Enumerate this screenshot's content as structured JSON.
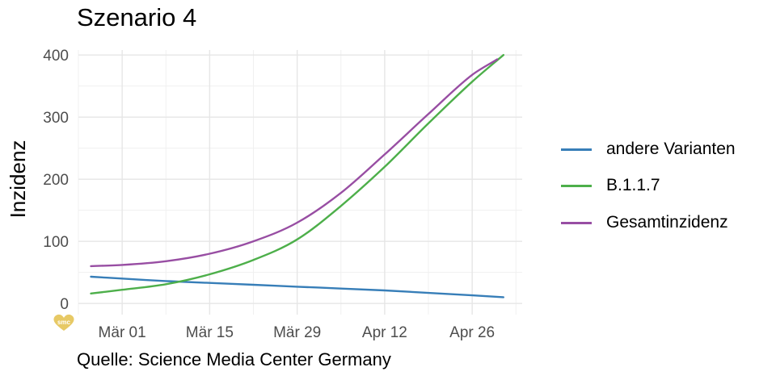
{
  "chart_data": {
    "type": "line",
    "title": "Szenario 4",
    "caption": "Quelle: Science Media Center Germany",
    "xlabel": "",
    "ylabel": "Inzidenz",
    "x_start": "2021-02-24",
    "x_ticks": [
      {
        "date": "2021-03-01",
        "label": "Mär 01"
      },
      {
        "date": "2021-03-15",
        "label": "Mär 15"
      },
      {
        "date": "2021-03-29",
        "label": "Mär 29"
      },
      {
        "date": "2021-04-12",
        "label": "Apr 12"
      },
      {
        "date": "2021-04-26",
        "label": "Apr 26"
      }
    ],
    "xlim": [
      "2021-02-22",
      "2021-05-04"
    ],
    "ylim": [
      -18,
      408
    ],
    "y_ticks": [
      0,
      100,
      200,
      300,
      400
    ],
    "grid": true,
    "legend_position": "right",
    "series": [
      {
        "name": "andere Varianten",
        "color": "#377EB8",
        "x": [
          "2021-02-24",
          "2021-03-01",
          "2021-03-08",
          "2021-03-15",
          "2021-03-22",
          "2021-03-29",
          "2021-04-05",
          "2021-04-12",
          "2021-04-19",
          "2021-04-26",
          "2021-05-01"
        ],
        "values": [
          43,
          40,
          36,
          33,
          30,
          27,
          24,
          21,
          17,
          13,
          10
        ]
      },
      {
        "name": "B.1.1.7",
        "color": "#4DAF4A",
        "x": [
          "2021-02-24",
          "2021-03-01",
          "2021-03-08",
          "2021-03-15",
          "2021-03-22",
          "2021-03-29",
          "2021-04-05",
          "2021-04-12",
          "2021-04-19",
          "2021-04-26",
          "2021-05-01"
        ],
        "values": [
          16,
          22,
          31,
          47,
          70,
          103,
          157,
          220,
          290,
          357,
          400
        ]
      },
      {
        "name": "Gesamtinzidenz",
        "color": "#984EA3",
        "x": [
          "2021-02-24",
          "2021-03-01",
          "2021-03-08",
          "2021-03-15",
          "2021-03-22",
          "2021-03-29",
          "2021-04-05",
          "2021-04-12",
          "2021-04-19",
          "2021-04-26",
          "2021-04-30"
        ],
        "values": [
          60,
          62,
          68,
          80,
          100,
          130,
          178,
          240,
          305,
          368,
          393
        ]
      }
    ]
  },
  "logo_text": "smc"
}
